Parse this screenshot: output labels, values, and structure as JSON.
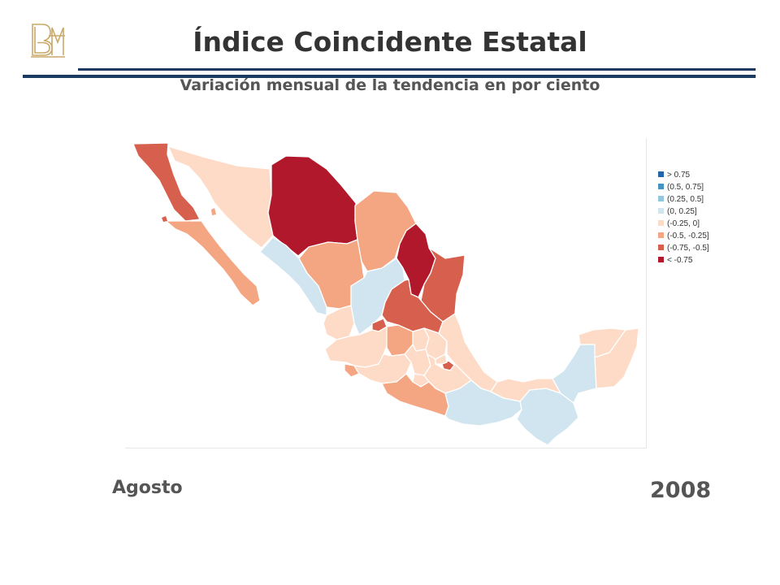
{
  "header": {
    "title": "Índice Coincidente Estatal",
    "subtitle": "Variación mensual de la tendencia en por ciento"
  },
  "footer": {
    "month": "Agosto",
    "year": "2008"
  },
  "colors": {
    "rule": "#1b3a60",
    "logo_gold": "#c9a96a",
    "text": "#555555"
  },
  "legend": [
    {
      "label": "> 0.75",
      "color": "#2166ac"
    },
    {
      "label": "(0.5, 0.75]",
      "color": "#4393c3"
    },
    {
      "label": "(0.25, 0.5]",
      "color": "#92c5de"
    },
    {
      "label": "(0, 0.25]",
      "color": "#d1e5f0"
    },
    {
      "label": "(-0.25, 0]",
      "color": "#fddbc7"
    },
    {
      "label": "(-0.5, -0.25]",
      "color": "#f4a582"
    },
    {
      "label": "(-0.75, -0.5]",
      "color": "#d6604d"
    },
    {
      "label": "< -0.75",
      "color": "#b2182b"
    }
  ],
  "map": {
    "states": [
      {
        "name": "baja-california",
        "class": "(-0.75, -0.5]",
        "color": "#d6604d"
      },
      {
        "name": "baja-california-sur",
        "class": "(-0.5, -0.25]",
        "color": "#f4a582"
      },
      {
        "name": "sonora",
        "class": "(-0.25, 0]",
        "color": "#fddbc7"
      },
      {
        "name": "chihuahua",
        "class": "< -0.75",
        "color": "#b2182b"
      },
      {
        "name": "coahuila",
        "class": "(-0.5, -0.25]",
        "color": "#f4a582"
      },
      {
        "name": "nuevo-leon",
        "class": "< -0.75",
        "color": "#b2182b"
      },
      {
        "name": "tamaulipas",
        "class": "(-0.75, -0.5]",
        "color": "#d6604d"
      },
      {
        "name": "sinaloa",
        "class": "(0, 0.25]",
        "color": "#d1e5f0"
      },
      {
        "name": "durango",
        "class": "(-0.5, -0.25]",
        "color": "#f4a582"
      },
      {
        "name": "zacatecas",
        "class": "(0, 0.25]",
        "color": "#d1e5f0"
      },
      {
        "name": "san-luis-potosi",
        "class": "(-0.75, -0.5]",
        "color": "#d6604d"
      },
      {
        "name": "nayarit",
        "class": "(-0.25, 0]",
        "color": "#fddbc7"
      },
      {
        "name": "aguascalientes",
        "class": "(-0.75, -0.5]",
        "color": "#d6604d"
      },
      {
        "name": "jalisco",
        "class": "(-0.25, 0]",
        "color": "#fddbc7"
      },
      {
        "name": "guanajuato",
        "class": "(-0.5, -0.25]",
        "color": "#f4a582"
      },
      {
        "name": "queretaro",
        "class": "(-0.25, 0]",
        "color": "#fddbc7"
      },
      {
        "name": "hidalgo",
        "class": "(-0.25, 0]",
        "color": "#fddbc7"
      },
      {
        "name": "veracruz",
        "class": "(-0.25, 0]",
        "color": "#fddbc7"
      },
      {
        "name": "colima",
        "class": "(-0.5, -0.25]",
        "color": "#f4a582"
      },
      {
        "name": "michoacan",
        "class": "(-0.25, 0]",
        "color": "#fddbc7"
      },
      {
        "name": "mexico",
        "class": "(-0.25, 0]",
        "color": "#fddbc7"
      },
      {
        "name": "cdmx",
        "class": "(-0.75, -0.5]",
        "color": "#d6604d"
      },
      {
        "name": "morelos",
        "class": "(-0.25, 0]",
        "color": "#fddbc7"
      },
      {
        "name": "tlaxcala",
        "class": "(-0.25, 0]",
        "color": "#fddbc7"
      },
      {
        "name": "puebla",
        "class": "(-0.25, 0]",
        "color": "#fddbc7"
      },
      {
        "name": "guerrero",
        "class": "(-0.5, -0.25]",
        "color": "#f4a582"
      },
      {
        "name": "oaxaca",
        "class": "(0, 0.25]",
        "color": "#d1e5f0"
      },
      {
        "name": "chiapas",
        "class": "(0, 0.25]",
        "color": "#d1e5f0"
      },
      {
        "name": "tabasco",
        "class": "(-0.25, 0]",
        "color": "#fddbc7"
      },
      {
        "name": "campeche",
        "class": "(0, 0.25]",
        "color": "#d1e5f0"
      },
      {
        "name": "yucatan",
        "class": "(-0.25, 0]",
        "color": "#fddbc7"
      },
      {
        "name": "quintana-roo",
        "class": "(-0.25, 0]",
        "color": "#fddbc7"
      }
    ]
  }
}
